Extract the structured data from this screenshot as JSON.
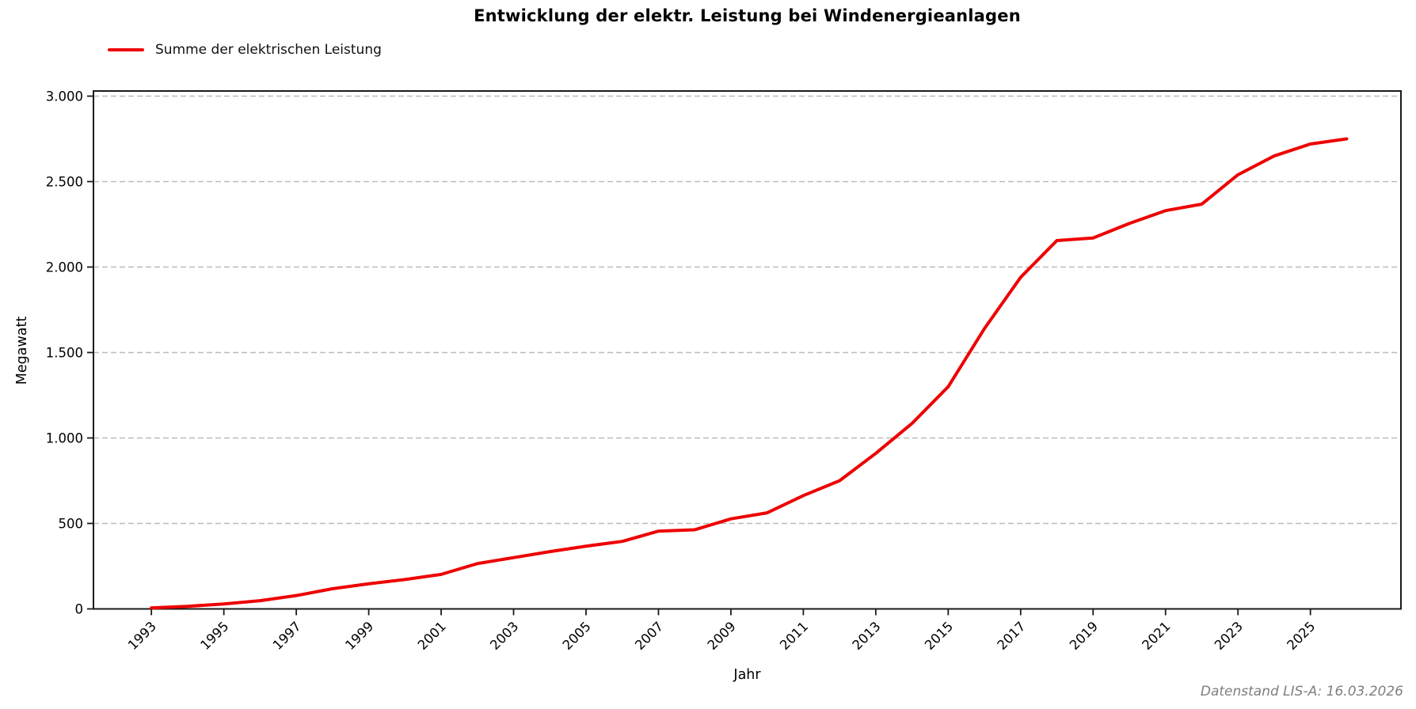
{
  "title": "Entwicklung der elektr. Leistung bei Windenergieanlagen",
  "legend": {
    "label": "Summe der elektrischen Leistung"
  },
  "footer": "Datenstand LIS-A: 16.03.2026",
  "colors": {
    "line": "#ee0000",
    "grid": "#bbbbbb",
    "spine": "#1a1a1a",
    "tick_text": "#000000",
    "footer_text": "#7f7f7f"
  },
  "chart_data": {
    "type": "line",
    "title": "Entwicklung der elektr. Leistung bei Windenergieanlagen",
    "xlabel": "Jahr",
    "ylabel": "Megawatt",
    "xlim": [
      1991.4,
      2027.5
    ],
    "ylim": [
      0,
      3030
    ],
    "grid": "horizontal-dashed",
    "legend_position": "top-left-above-axes",
    "x_ticks": [
      1993,
      1995,
      1997,
      1999,
      2001,
      2003,
      2005,
      2007,
      2009,
      2011,
      2013,
      2015,
      2017,
      2019,
      2021,
      2023,
      2025
    ],
    "y_ticks": [
      {
        "value": 0,
        "label": "0"
      },
      {
        "value": 500,
        "label": "500"
      },
      {
        "value": 1000,
        "label": "1.000"
      },
      {
        "value": 1500,
        "label": "1.500"
      },
      {
        "value": 2000,
        "label": "2.000"
      },
      {
        "value": 2500,
        "label": "2.500"
      },
      {
        "value": 3000,
        "label": "3.000"
      }
    ],
    "series": [
      {
        "name": "Summe der elektrischen Leistung",
        "color": "#ee0000",
        "x": [
          1993,
          1994,
          1995,
          1996,
          1997,
          1998,
          1999,
          2000,
          2001,
          2002,
          2003,
          2004,
          2005,
          2006,
          2007,
          2008,
          2009,
          2010,
          2011,
          2012,
          2013,
          2014,
          2015,
          2016,
          2017,
          2018,
          2019,
          2020,
          2021,
          2022,
          2023,
          2024,
          2025,
          2026
        ],
        "y": [
          6,
          15,
          29,
          48,
          78,
          118,
          147,
          172,
          202,
          265,
          300,
          335,
          367,
          395,
          455,
          463,
          527,
          562,
          663,
          750,
          910,
          1085,
          1300,
          1640,
          1940,
          2155,
          2170,
          2255,
          2330,
          2368,
          2540,
          2650,
          2720,
          2750
        ]
      }
    ]
  }
}
